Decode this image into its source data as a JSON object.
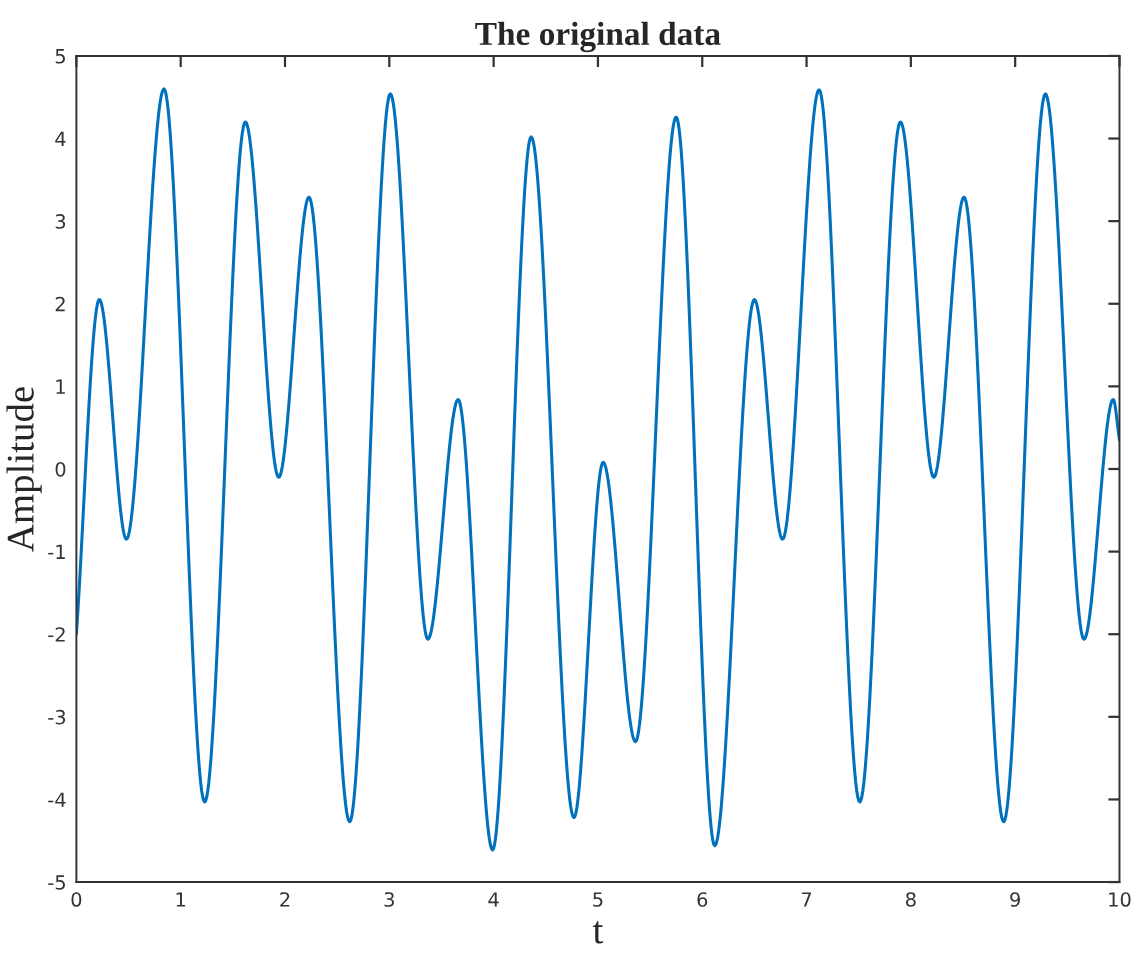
{
  "chart_data": {
    "type": "line",
    "title": "The original data",
    "xlabel": "t",
    "ylabel": "Amplitude",
    "xlim": [
      0,
      10
    ],
    "ylim": [
      -5,
      5
    ],
    "xticks": [
      0,
      1,
      2,
      3,
      4,
      5,
      6,
      7,
      8,
      9,
      10
    ],
    "yticks": [
      -5,
      -4,
      -3,
      -2,
      -1,
      0,
      1,
      2,
      3,
      4,
      5
    ],
    "grid": false,
    "marker": "none",
    "line_style": "solid",
    "series": [
      {
        "color": "#0072bd",
        "x": [
          0,
          0.22,
          0.48,
          0.84,
          1.23,
          1.62,
          1.94,
          2.23,
          2.62,
          3.01,
          3.37,
          3.66,
          3.99,
          4.36,
          4.77,
          5.05,
          5.36,
          5.75,
          6.12,
          6.5,
          6.77,
          7.12,
          7.51,
          7.9,
          8.22,
          8.51,
          8.89,
          9.29,
          9.66,
          9.94,
          10
        ],
        "values": [
          -2.0,
          2.05,
          -0.85,
          4.6,
          -4.03,
          4.2,
          -0.1,
          3.29,
          -4.27,
          4.54,
          -2.06,
          0.84,
          -4.61,
          4.02,
          -4.22,
          0.08,
          -3.3,
          4.26,
          -4.56,
          2.05,
          -0.85,
          4.59,
          -4.03,
          4.2,
          -0.1,
          3.29,
          -4.27,
          4.54,
          -2.06,
          0.84,
          0.35
        ]
      }
    ]
  }
}
